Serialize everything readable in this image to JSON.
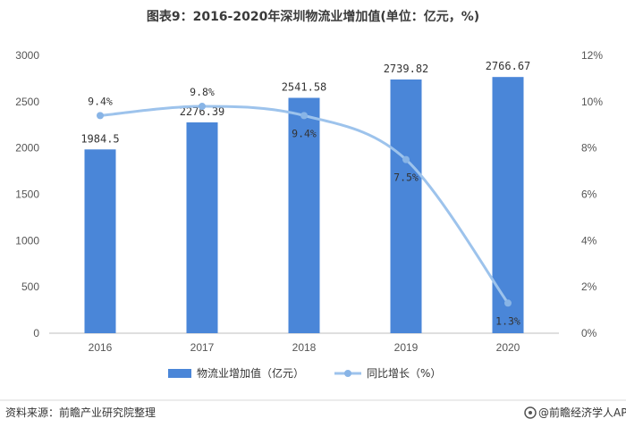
{
  "chart_data": {
    "type": "bar",
    "title": "图表9：2016-2020年深圳物流业增加值(单位：亿元，%)",
    "categories": [
      "2016",
      "2017",
      "2018",
      "2019",
      "2020"
    ],
    "series": [
      {
        "name": "物流业增加值（亿元）",
        "type": "bar",
        "axis": "left",
        "values": [
          1984.5,
          2276.39,
          2541.58,
          2739.82,
          2766.67
        ],
        "labels": [
          "1984.5",
          "2276.39",
          "2541.58",
          "2739.82",
          "2766.67"
        ]
      },
      {
        "name": "同比增长（%）",
        "type": "line",
        "axis": "right",
        "values": [
          9.4,
          9.8,
          9.4,
          7.5,
          1.3
        ],
        "labels": [
          "9.4%",
          "9.8%",
          "9.4%",
          "7.5%",
          "1.3%"
        ]
      }
    ],
    "y_left": {
      "ylim": [
        0,
        3000
      ],
      "ticks": [
        "0",
        "500",
        "1000",
        "1500",
        "2000",
        "2500",
        "3000"
      ]
    },
    "y_right": {
      "ylim": [
        0,
        12
      ],
      "ticks": [
        "0%",
        "2%",
        "4%",
        "6%",
        "8%",
        "10%",
        "12%"
      ]
    },
    "legend_position": "bottom",
    "grid": false,
    "colors": {
      "bar": "#4a86d8",
      "line": "#9dc3ec",
      "marker": "#88b4e6"
    }
  },
  "footer": {
    "source": "资料来源：前瞻产业研究院整理",
    "brand": "@前瞻经济学人APP"
  }
}
